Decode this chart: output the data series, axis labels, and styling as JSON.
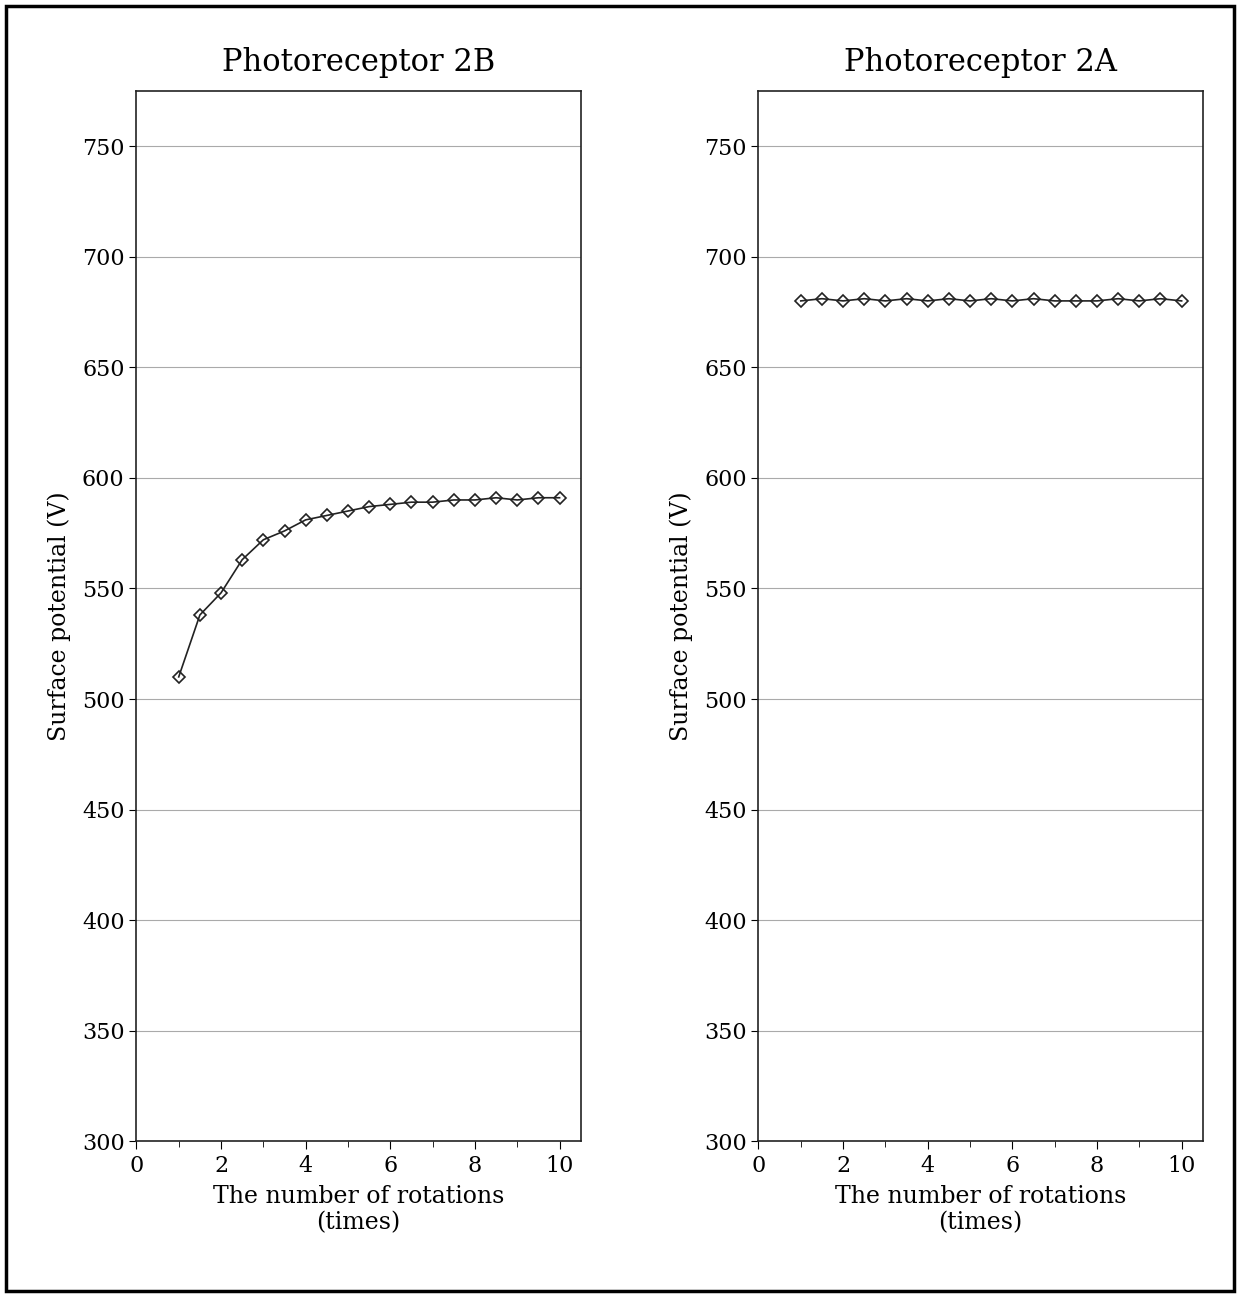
{
  "left_title": "Photoreceptor 2B",
  "right_title": "Photoreceptor 2A",
  "xlabel": "The number of rotations\n(times)",
  "ylabel": "Surface potential (V)",
  "xlim": [
    0,
    10.5
  ],
  "ylim": [
    300,
    775
  ],
  "yticks": [
    300,
    350,
    400,
    450,
    500,
    550,
    600,
    650,
    700,
    750
  ],
  "xticks": [
    0,
    2,
    4,
    6,
    8,
    10
  ],
  "left_x": [
    1,
    1.5,
    2,
    2.5,
    3,
    3.5,
    4,
    4.5,
    5,
    5.5,
    6,
    6.5,
    7,
    7.5,
    8,
    8.5,
    9,
    9.5,
    10
  ],
  "left_y": [
    510,
    538,
    548,
    563,
    572,
    576,
    581,
    583,
    585,
    587,
    588,
    589,
    589,
    590,
    590,
    591,
    590,
    591,
    591
  ],
  "right_x": [
    1,
    1.5,
    2,
    2.5,
    3,
    3.5,
    4,
    4.5,
    5,
    5.5,
    6,
    6.5,
    7,
    7.5,
    8,
    8.5,
    9,
    9.5,
    10
  ],
  "right_y": [
    680,
    681,
    680,
    681,
    680,
    681,
    680,
    681,
    680,
    681,
    680,
    681,
    680,
    680,
    680,
    681,
    680,
    681,
    680
  ],
  "line_color": "#222222",
  "marker": "D",
  "marker_size": 6,
  "background_color": "#ffffff",
  "grid_color": "#aaaaaa",
  "title_fontsize": 22,
  "label_fontsize": 17,
  "tick_fontsize": 16
}
